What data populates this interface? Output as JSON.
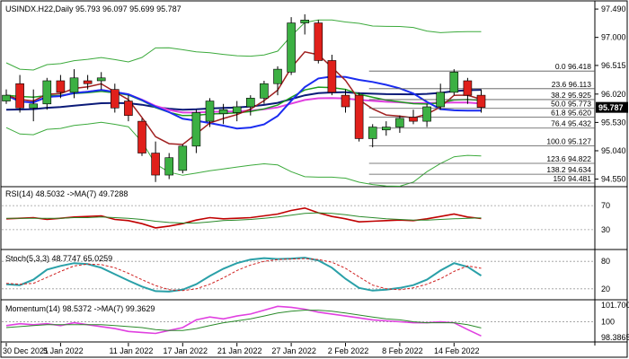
{
  "chart_data": {
    "type": "candlestick",
    "symbol_line": "USINDX.H22,Daily  95.793 96.097 95.699 95.787",
    "last_price_label": "95.787",
    "colors": {
      "bull": "#3cb043",
      "bear": "#e0201b",
      "background": "#ffffff",
      "ma_navy": "#0b1a78",
      "ma_blue": "#1a2cf0",
      "ma_magenta": "#e040e0",
      "ma_green": "#1e9e1e",
      "ma_brown": "#a02020",
      "bollinger": "#3caa3c",
      "fib": "#555555",
      "rsi": "#c00000",
      "rsi_ma": "#2a8a2a",
      "stoch_main": "#2aa0a8",
      "stoch_signal": "#d02020",
      "momentum": "#e040e0",
      "momentum_ma": "#2a8a2a",
      "price_label_bg": "#000000"
    },
    "price_axis": [
      "97.490",
      "97.000",
      "96.515",
      "96.020",
      "95.530",
      "95.040",
      "94.550"
    ],
    "price_range": [
      94.45,
      97.6
    ],
    "x_labels": [
      {
        "i": 0,
        "text": "30 Dec 2021"
      },
      {
        "i": 4,
        "text": "5 Jan 2022"
      },
      {
        "i": 9,
        "text": "11 Jan 2022"
      },
      {
        "i": 13,
        "text": "17 Jan 2022"
      },
      {
        "i": 17,
        "text": "21 Jan 2022"
      },
      {
        "i": 21,
        "text": "27 Jan 2022"
      },
      {
        "i": 25,
        "text": "2 Feb 2022"
      },
      {
        "i": 29,
        "text": "8 Feb 2022"
      },
      {
        "i": 33,
        "text": "14 Feb 2022"
      }
    ],
    "candles": [
      {
        "o": 95.9,
        "h": 96.1,
        "l": 95.85,
        "c": 96.0
      },
      {
        "o": 96.2,
        "h": 96.35,
        "l": 95.7,
        "c": 95.78
      },
      {
        "o": 95.78,
        "h": 96.1,
        "l": 95.55,
        "c": 95.85
      },
      {
        "o": 95.85,
        "h": 96.3,
        "l": 95.75,
        "c": 96.25
      },
      {
        "o": 96.25,
        "h": 96.35,
        "l": 95.95,
        "c": 96.05
      },
      {
        "o": 96.05,
        "h": 96.45,
        "l": 95.95,
        "c": 96.3
      },
      {
        "o": 96.25,
        "h": 96.35,
        "l": 96.1,
        "c": 96.2
      },
      {
        "o": 96.25,
        "h": 96.4,
        "l": 96.1,
        "c": 96.3
      },
      {
        "o": 96.1,
        "h": 96.2,
        "l": 95.7,
        "c": 95.78
      },
      {
        "o": 95.9,
        "h": 96.0,
        "l": 95.55,
        "c": 95.65
      },
      {
        "o": 95.55,
        "h": 95.6,
        "l": 94.95,
        "c": 95.0
      },
      {
        "o": 95.0,
        "h": 95.2,
        "l": 94.5,
        "c": 94.62
      },
      {
        "o": 94.62,
        "h": 95.0,
        "l": 94.55,
        "c": 94.92
      },
      {
        "o": 94.7,
        "h": 95.15,
        "l": 94.65,
        "c": 95.12
      },
      {
        "o": 95.12,
        "h": 95.75,
        "l": 95.0,
        "c": 95.7
      },
      {
        "o": 95.55,
        "h": 95.95,
        "l": 95.45,
        "c": 95.9
      },
      {
        "o": 95.68,
        "h": 95.85,
        "l": 95.5,
        "c": 95.75
      },
      {
        "o": 95.7,
        "h": 95.9,
        "l": 95.55,
        "c": 95.8
      },
      {
        "o": 95.8,
        "h": 96.0,
        "l": 95.65,
        "c": 95.95
      },
      {
        "o": 95.95,
        "h": 96.25,
        "l": 95.85,
        "c": 96.2
      },
      {
        "o": 96.2,
        "h": 96.5,
        "l": 96.0,
        "c": 96.45
      },
      {
        "o": 96.4,
        "h": 97.35,
        "l": 96.35,
        "c": 97.25
      },
      {
        "o": 97.25,
        "h": 97.4,
        "l": 97.05,
        "c": 97.3
      },
      {
        "o": 97.25,
        "h": 97.3,
        "l": 96.55,
        "c": 96.6
      },
      {
        "o": 96.6,
        "h": 96.7,
        "l": 96.0,
        "c": 96.05
      },
      {
        "o": 96.0,
        "h": 96.1,
        "l": 95.7,
        "c": 95.8
      },
      {
        "o": 96.0,
        "h": 96.05,
        "l": 95.2,
        "c": 95.25
      },
      {
        "o": 95.25,
        "h": 95.5,
        "l": 95.1,
        "c": 95.45
      },
      {
        "o": 95.4,
        "h": 95.55,
        "l": 95.3,
        "c": 95.45
      },
      {
        "o": 95.45,
        "h": 95.65,
        "l": 95.35,
        "c": 95.6
      },
      {
        "o": 95.62,
        "h": 95.75,
        "l": 95.5,
        "c": 95.55
      },
      {
        "o": 95.55,
        "h": 95.85,
        "l": 95.45,
        "c": 95.8
      },
      {
        "o": 95.8,
        "h": 96.2,
        "l": 95.75,
        "c": 96.05
      },
      {
        "o": 96.05,
        "h": 96.45,
        "l": 96.0,
        "c": 96.4
      },
      {
        "o": 96.25,
        "h": 96.3,
        "l": 95.85,
        "c": 96.0
      },
      {
        "o": 96.0,
        "h": 96.1,
        "l": 95.7,
        "c": 95.79
      }
    ],
    "fib_levels": [
      {
        "label": "0.0 96.418",
        "price": 96.418
      },
      {
        "label": "23.6 96.113",
        "price": 96.113
      },
      {
        "label": "38.2 95.925",
        "price": 95.925
      },
      {
        "label": "50.0 95.773",
        "price": 95.773
      },
      {
        "label": "61.8 95.620",
        "price": 95.62
      },
      {
        "label": "76.4 95.432",
        "price": 95.432
      },
      {
        "label": "100.0 95.127",
        "price": 95.127
      },
      {
        "label": "123.6 94.822",
        "price": 94.822
      },
      {
        "label": "138.2 94.634",
        "price": 94.634
      },
      {
        "label": "150 94.481",
        "price": 94.481
      }
    ],
    "panels": [
      {
        "id": "rsi",
        "label": "RSI(14) 48.5032  ->MA(7) 49.7288",
        "axis": [
          "70",
          "30"
        ],
        "levels": [
          70,
          30
        ],
        "range": [
          0,
          100
        ],
        "series": [
          [
            48,
            49,
            50,
            47,
            49,
            51,
            52,
            53,
            47,
            45,
            40,
            33,
            36,
            40,
            46,
            50,
            48,
            49,
            50,
            53,
            56,
            62,
            66,
            58,
            52,
            48,
            43,
            44,
            45,
            46,
            45,
            48,
            52,
            56,
            51,
            48.5
          ],
          [
            49,
            49,
            49,
            49,
            49,
            50,
            50,
            51,
            50,
            49,
            47,
            44,
            42,
            41,
            41,
            43,
            45,
            46,
            47,
            49,
            51,
            54,
            57,
            58,
            57,
            55,
            52,
            50,
            48,
            47,
            46,
            46,
            47,
            48,
            49,
            49.7
          ]
        ]
      },
      {
        "id": "stoch",
        "label": "Stoch(5,3,3) 48.7747 65.0259",
        "axis": [
          "80",
          "20"
        ],
        "levels": [
          80,
          20
        ],
        "range": [
          0,
          100
        ],
        "series": [
          [
            30,
            28,
            40,
            62,
            70,
            76,
            74,
            66,
            52,
            38,
            25,
            15,
            14,
            18,
            30,
            48,
            64,
            76,
            84,
            87,
            85,
            86,
            88,
            82,
            66,
            42,
            22,
            16,
            18,
            22,
            28,
            40,
            60,
            76,
            68,
            48.8
          ],
          [
            32,
            30,
            32,
            45,
            58,
            70,
            74,
            73,
            66,
            54,
            40,
            27,
            18,
            16,
            20,
            30,
            44,
            60,
            72,
            80,
            84,
            85,
            86,
            84,
            78,
            65,
            46,
            28,
            20,
            18,
            22,
            30,
            42,
            58,
            70,
            65
          ]
        ]
      },
      {
        "id": "momentum",
        "label": "Momentum(14) 98.5372  ->MA(7) 99.3629",
        "axis": [
          "101.7007",
          "100",
          "98.3865"
        ],
        "levels": [
          100
        ],
        "range": [
          98.1,
          102.0
        ],
        "series": [
          [
            99.6,
            99.8,
            99.7,
            99.8,
            99.6,
            99.9,
            99.7,
            99.5,
            99.3,
            99.0,
            98.9,
            98.8,
            99.1,
            99.4,
            100.2,
            100.5,
            100.3,
            100.6,
            100.8,
            101.2,
            101.6,
            101.5,
            101.3,
            101.0,
            100.8,
            100.6,
            100.4,
            100.2,
            100.1,
            100.0,
            99.9,
            99.9,
            100.0,
            99.9,
            99.2,
            98.54
          ],
          [
            99.4,
            99.5,
            99.6,
            99.7,
            99.7,
            99.7,
            99.7,
            99.7,
            99.6,
            99.5,
            99.4,
            99.2,
            99.1,
            99.1,
            99.3,
            99.6,
            99.9,
            100.1,
            100.3,
            100.6,
            100.9,
            101.1,
            101.2,
            101.2,
            101.1,
            100.9,
            100.7,
            100.5,
            100.3,
            100.2,
            100.0,
            99.9,
            99.9,
            99.9,
            99.7,
            99.36
          ]
        ]
      }
    ]
  }
}
